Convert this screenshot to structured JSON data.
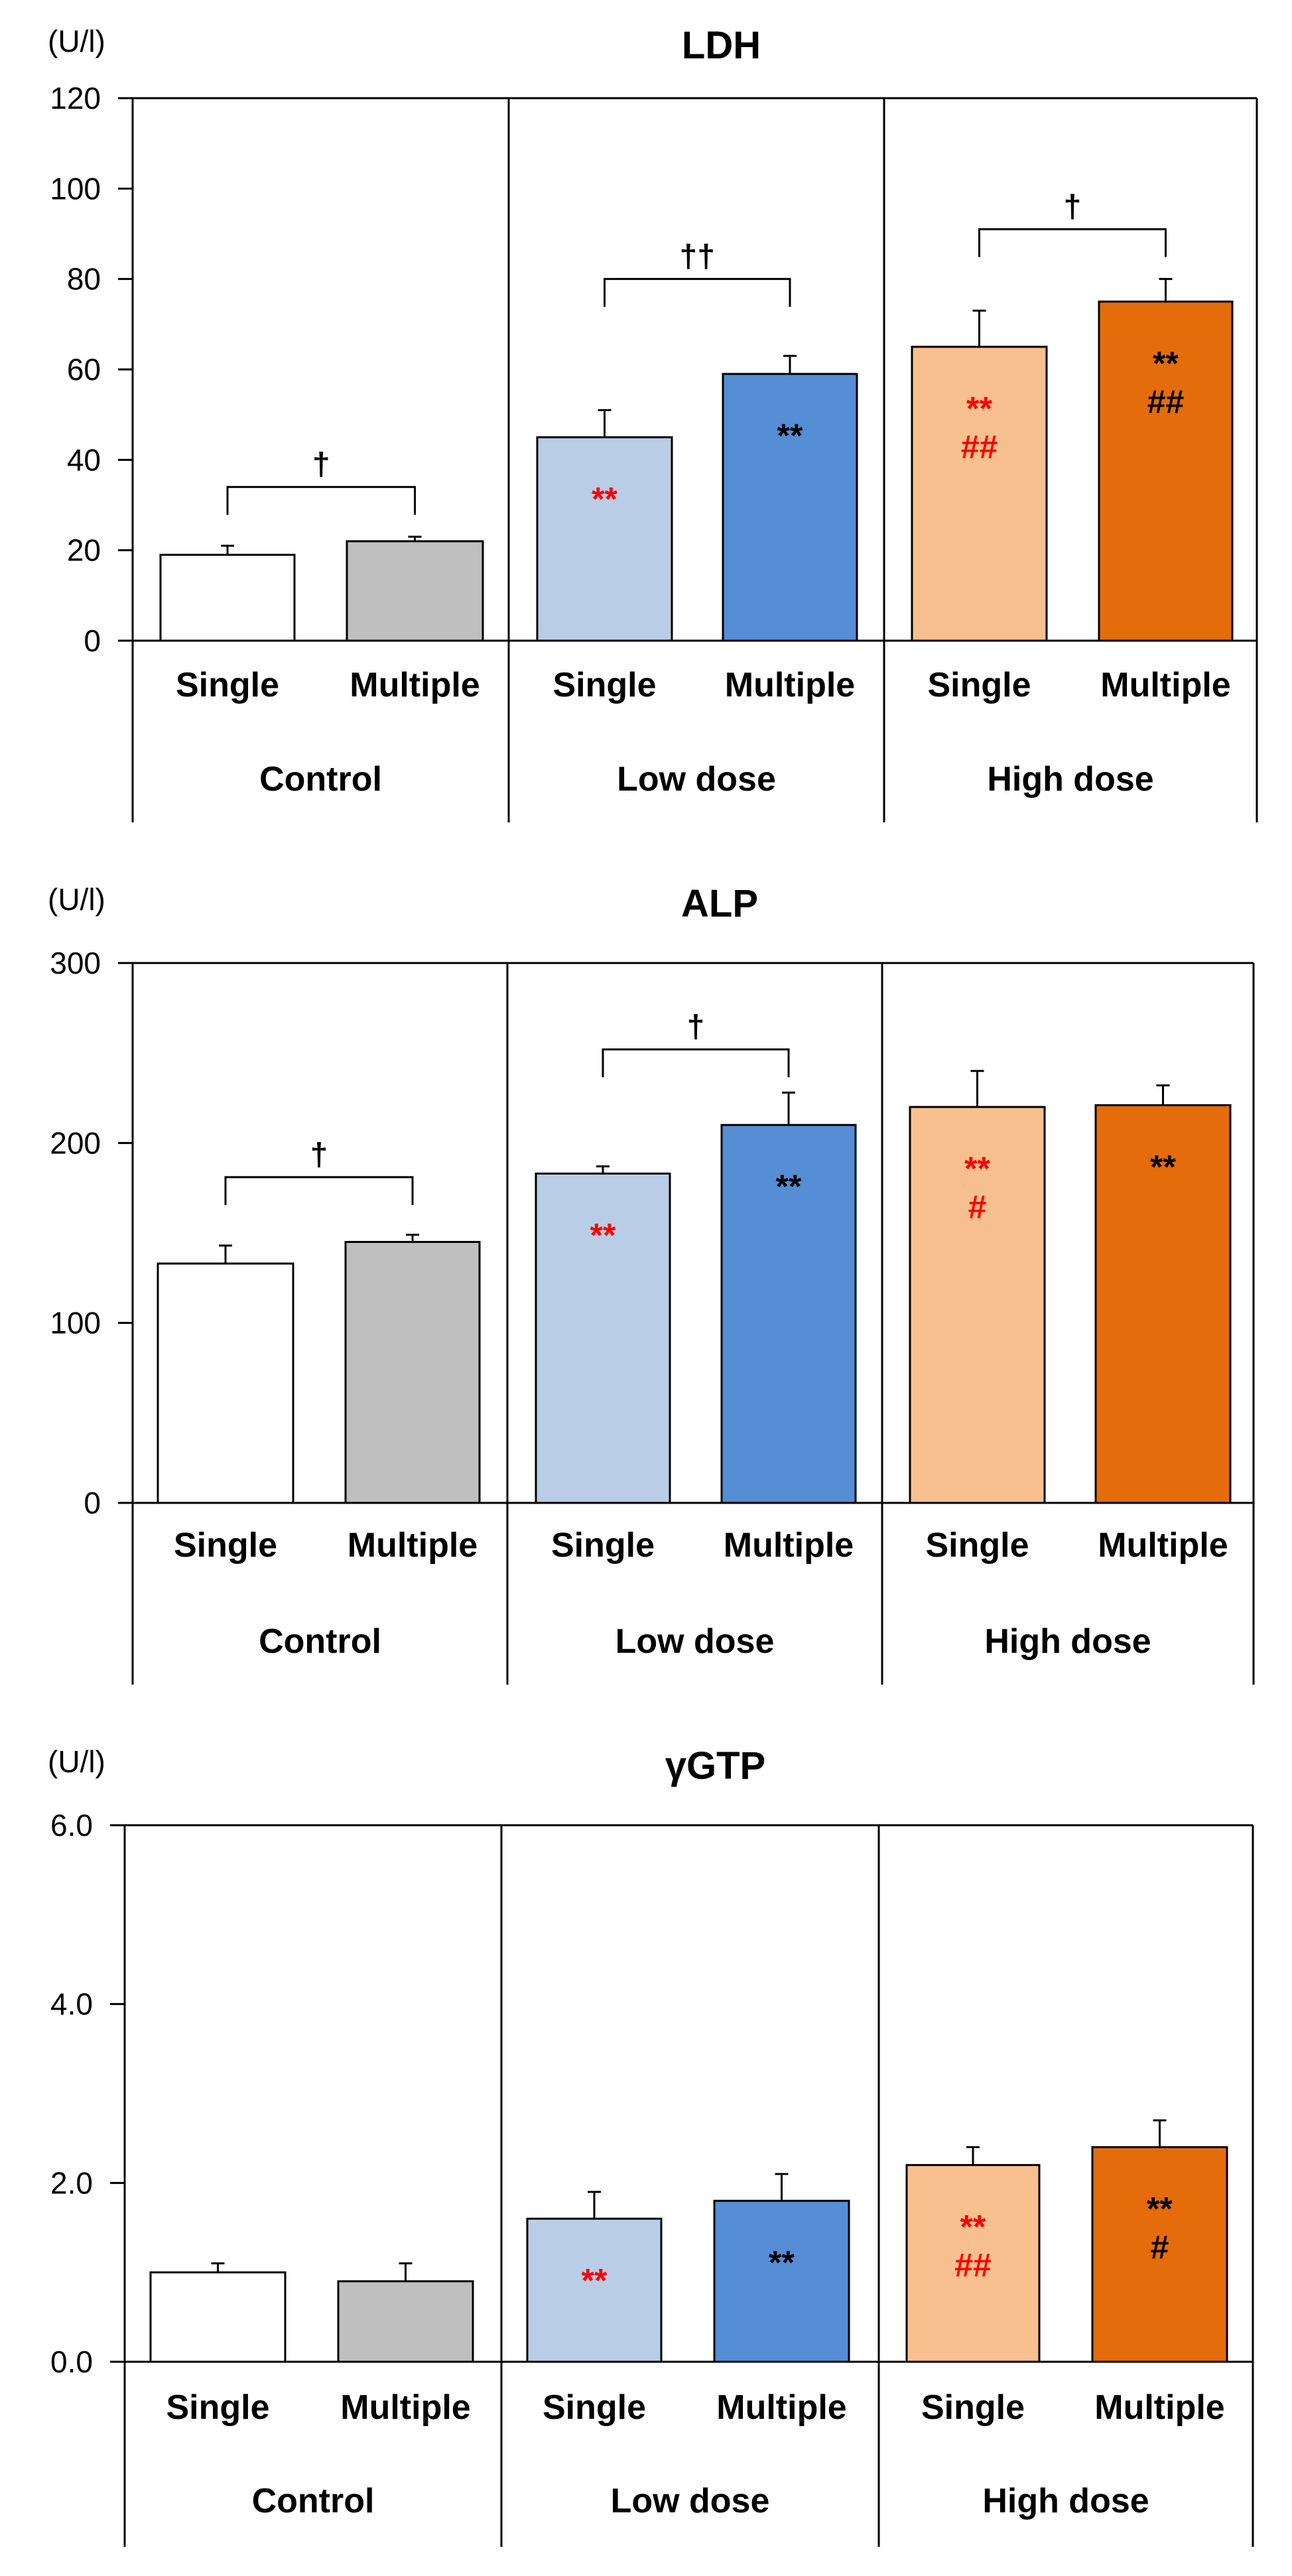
{
  "colors": {
    "control_single": "#ffffff",
    "control_multiple": "#bfbfbf",
    "low_single": "#b9cde6",
    "low_multiple": "#558ed5",
    "high_single": "#f8c08f",
    "high_multiple": "#e46c0a",
    "significance_red": "#ff0000",
    "significance_black": "#000000"
  },
  "chart_data": [
    {
      "type": "bar",
      "title": "LDH",
      "ylabel": "(U/l)",
      "ylim": [
        0,
        120
      ],
      "yticks": [
        "0",
        "20",
        "40",
        "60",
        "80",
        "100",
        "120"
      ],
      "ytick_values": [
        0,
        20,
        40,
        60,
        80,
        100,
        120
      ],
      "groups": [
        "Control",
        "Low dose",
        "High dose"
      ],
      "categories": [
        "Single",
        "Multiple",
        "Single",
        "Multiple",
        "Single",
        "Multiple"
      ],
      "values": [
        19,
        22,
        45,
        59,
        65,
        75
      ],
      "errors": [
        2,
        1,
        6,
        4,
        8,
        5
      ],
      "annotations": [
        {
          "bar": 2,
          "lines": [
            {
              "text": "**",
              "color": "red"
            }
          ]
        },
        {
          "bar": 3,
          "lines": [
            {
              "text": "**",
              "color": "black"
            }
          ]
        },
        {
          "bar": 4,
          "lines": [
            {
              "text": "**",
              "color": "red"
            },
            {
              "text": "##",
              "color": "red"
            }
          ]
        },
        {
          "bar": 5,
          "lines": [
            {
              "text": "**",
              "color": "black"
            },
            {
              "text": "##",
              "color": "black"
            }
          ]
        }
      ],
      "brackets": [
        {
          "from": 0,
          "to": 1,
          "label": "†",
          "level": 34
        },
        {
          "from": 2,
          "to": 3,
          "label": "††",
          "level": 80
        },
        {
          "from": 4,
          "to": 5,
          "label": "†",
          "level": 91
        }
      ]
    },
    {
      "type": "bar",
      "title": "ALP",
      "ylabel": "(U/l)",
      "ylim": [
        0,
        300
      ],
      "yticks": [
        "0",
        "100",
        "200",
        "300"
      ],
      "ytick_values": [
        0,
        100,
        200,
        300
      ],
      "groups": [
        "Control",
        "Low dose",
        "High dose"
      ],
      "categories": [
        "Single",
        "Multiple",
        "Single",
        "Multiple",
        "Single",
        "Multiple"
      ],
      "values": [
        133,
        145,
        183,
        210,
        220,
        221
      ],
      "errors": [
        10,
        4,
        4,
        18,
        20,
        11
      ],
      "annotations": [
        {
          "bar": 2,
          "lines": [
            {
              "text": "**",
              "color": "red"
            }
          ]
        },
        {
          "bar": 3,
          "lines": [
            {
              "text": "**",
              "color": "black"
            }
          ]
        },
        {
          "bar": 4,
          "lines": [
            {
              "text": "**",
              "color": "red"
            },
            {
              "text": "#",
              "color": "red"
            }
          ]
        },
        {
          "bar": 5,
          "lines": [
            {
              "text": "**",
              "color": "black"
            }
          ]
        }
      ],
      "brackets": [
        {
          "from": 0,
          "to": 1,
          "label": "†",
          "level": 181
        },
        {
          "from": 2,
          "to": 3,
          "label": "†",
          "level": 252
        }
      ]
    },
    {
      "type": "bar",
      "title": "γGTP",
      "ylabel": "(U/l)",
      "ylim": [
        0,
        6.0
      ],
      "yticks": [
        "0.0",
        "2.0",
        "4.0",
        "6.0"
      ],
      "ytick_values": [
        0,
        2,
        4,
        6
      ],
      "groups": [
        "Control",
        "Low dose",
        "High dose"
      ],
      "categories": [
        "Single",
        "Multiple",
        "Single",
        "Multiple",
        "Single",
        "Multiple"
      ],
      "values": [
        1.0,
        0.9,
        1.6,
        1.8,
        2.2,
        2.4
      ],
      "errors": [
        0.1,
        0.2,
        0.3,
        0.3,
        0.2,
        0.3
      ],
      "annotations": [
        {
          "bar": 2,
          "lines": [
            {
              "text": "**",
              "color": "red"
            }
          ]
        },
        {
          "bar": 3,
          "lines": [
            {
              "text": "**",
              "color": "black"
            }
          ]
        },
        {
          "bar": 4,
          "lines": [
            {
              "text": "**",
              "color": "red"
            },
            {
              "text": "##",
              "color": "red"
            }
          ]
        },
        {
          "bar": 5,
          "lines": [
            {
              "text": "**",
              "color": "black"
            },
            {
              "text": "#",
              "color": "black"
            }
          ]
        }
      ],
      "brackets": []
    }
  ]
}
